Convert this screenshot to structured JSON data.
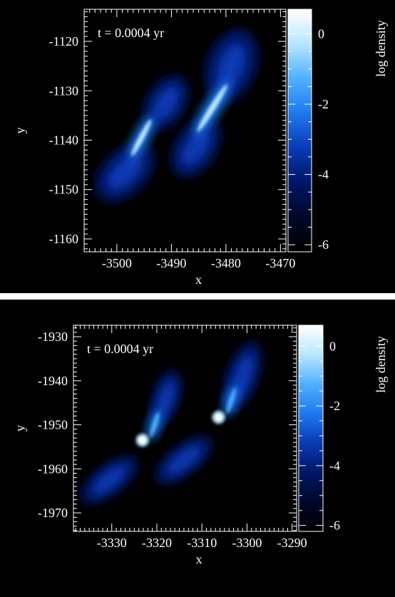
{
  "chart_data": [
    {
      "type": "heatmap",
      "annotation": "t = 0.0004 yr",
      "xlabel": "x",
      "ylabel": "y",
      "colorbar_label": "log density",
      "xlim": [
        -3506,
        -3469
      ],
      "ylim": [
        -1162.6,
        -1113.5
      ],
      "xticks": [
        -3500,
        -3490,
        -3480,
        -3470
      ],
      "xtick_labels": [
        "-3500",
        "-3490",
        "-3480",
        "-3470"
      ],
      "yticks": [
        -1120,
        -1130,
        -1140,
        -1150,
        -1160
      ],
      "ytick_labels": [
        "-1120",
        "-1130",
        "-1140",
        "-1150",
        "-1160"
      ],
      "colorbar_range": [
        -6.2,
        0.7
      ],
      "colorbar_ticks": [
        0,
        -2,
        -4,
        -6
      ],
      "colorbar_tick_labels": [
        "0",
        "-2",
        "-4",
        "-6"
      ],
      "colormap": [
        "#000000",
        "#00082a",
        "#001666",
        "#0a3bb5",
        "#1f78ee",
        "#4fb0ff",
        "#b8e6ff",
        "#ffffff"
      ],
      "structures": [
        {
          "name": "lower-left lobe",
          "center": [
            -3498.5,
            -1146.5
          ],
          "length": 13,
          "width": 8,
          "angle": 44,
          "peak": -2.6
        },
        {
          "name": "upper-left lobe",
          "center": [
            -3491.0,
            -1132.5
          ],
          "length": 11,
          "width": 7,
          "angle": 58,
          "peak": -2.9
        },
        {
          "name": "lower-right lobe",
          "center": [
            -3485.5,
            -1141.5
          ],
          "length": 12,
          "width": 7.5,
          "angle": 56,
          "peak": -2.6
        },
        {
          "name": "upper-right lobe",
          "center": [
            -3479.0,
            -1125.0
          ],
          "length": 14,
          "width": 9,
          "angle": 70,
          "peak": -2.4
        },
        {
          "name": "left bridge",
          "center": [
            -3495.5,
            -1139.5
          ],
          "length": 9,
          "width": 1.8,
          "angle": 62,
          "peak": -0.6
        },
        {
          "name": "right bridge",
          "center": [
            -3482.5,
            -1133.5
          ],
          "length": 12,
          "width": 2,
          "angle": 58,
          "peak": -0.6
        }
      ]
    },
    {
      "type": "heatmap",
      "annotation": "t = 0.0004 yr",
      "xlabel": "x",
      "ylabel": "y",
      "colorbar_label": "log density",
      "xlim": [
        -3338.5,
        -3289
      ],
      "ylim": [
        -1974.2,
        -1927.4
      ],
      "xticks": [
        -3330,
        -3320,
        -3310,
        -3300,
        -3290
      ],
      "xtick_labels": [
        "-3330",
        "-3320",
        "-3310",
        "-3300",
        "-3290"
      ],
      "yticks": [
        -1930,
        -1940,
        -1950,
        -1960,
        -1970
      ],
      "ytick_labels": [
        "-1930",
        "-1940",
        "-1950",
        "-1960",
        "-1970"
      ],
      "colorbar_range": [
        -6.2,
        0.7
      ],
      "colorbar_ticks": [
        0,
        -2,
        -4,
        -6
      ],
      "colorbar_tick_labels": [
        "0",
        "-2",
        "-4",
        "-6"
      ],
      "colormap": [
        "#000000",
        "#00082a",
        "#001666",
        "#0a3bb5",
        "#1f78ee",
        "#4fb0ff",
        "#b8e6ff",
        "#ffffff"
      ],
      "cores": [
        {
          "name": "left core",
          "x": -3323.2,
          "y": -1953.5,
          "peak": 0.5
        },
        {
          "name": "right core",
          "x": -3306.3,
          "y": -1948.3,
          "peak": 0.5
        }
      ],
      "structures": [
        {
          "name": "lower-left tail",
          "center": [
            -3330.5,
            -1962.5
          ],
          "length": 15,
          "width": 6.5,
          "angle": 38,
          "peak": -2.9
        },
        {
          "name": "upper-left tail",
          "center": [
            -3318.0,
            -1944.0
          ],
          "length": 13,
          "width": 6,
          "angle": 72,
          "peak": -2.7
        },
        {
          "name": "lower-right tail",
          "center": [
            -3314.0,
            -1958.0
          ],
          "length": 15,
          "width": 6.5,
          "angle": 38,
          "peak": -2.9
        },
        {
          "name": "upper-right tail",
          "center": [
            -3301.0,
            -1939.0
          ],
          "length": 16,
          "width": 7,
          "angle": 70,
          "peak": -2.6
        },
        {
          "name": "left spiral arm",
          "center": [
            -3320.5,
            -1950.0
          ],
          "length": 7,
          "width": 1.8,
          "angle": 72,
          "peak": -1.2
        },
        {
          "name": "right spiral arm",
          "center": [
            -3303.5,
            -1944.5
          ],
          "length": 7,
          "width": 1.8,
          "angle": 72,
          "peak": -1.2
        }
      ]
    }
  ]
}
